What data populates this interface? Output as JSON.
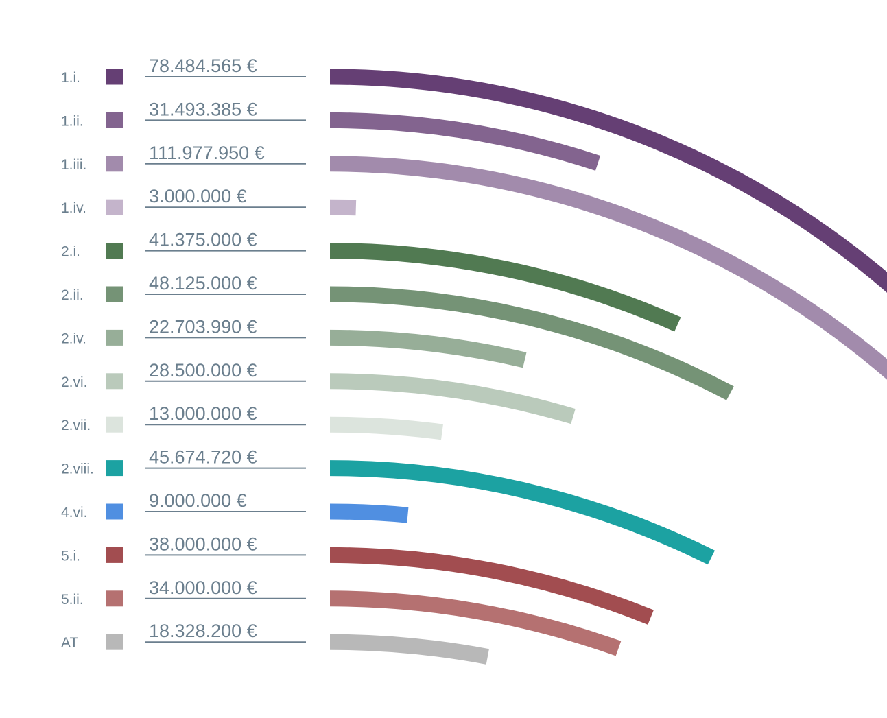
{
  "chart_data": {
    "type": "bar",
    "title": "",
    "xlabel": "",
    "ylabel": "",
    "grid": false,
    "legend": "left",
    "unit": "€",
    "categories": [
      "1.i.",
      "1.ii.",
      "1.iii.",
      "1.iv.",
      "2.i.",
      "2.ii.",
      "2.iv.",
      "2.vi.",
      "2.vii.",
      "2.viii.",
      "4.vi.",
      "5.i.",
      "5.ii.",
      "AT"
    ],
    "values": [
      78484565,
      31493385,
      111977950,
      3000000,
      41375000,
      48125000,
      22703990,
      28500000,
      13000000,
      45674720,
      9000000,
      38000000,
      34000000,
      18328200
    ],
    "value_labels": [
      "78.484.565 €",
      "31.493.385 €",
      "111.977.950 €",
      "3.000.000 €",
      "41.375.000 €",
      "48.125.000 €",
      "22.703.990 €",
      "28.500.000 €",
      "13.000.000 €",
      "45.674.720 €",
      "9.000.000 €",
      "38.000.000 €",
      "34.000.000 €",
      "18.328.200 €"
    ],
    "colors": [
      "#653f74",
      "#83648f",
      "#a28bac",
      "#c4b4cb",
      "#517a52",
      "#759376",
      "#97ae98",
      "#bacabb",
      "#dce4dd",
      "#1ca2a2",
      "#508fe1",
      "#a24d50",
      "#b57171",
      "#b8b8b8"
    ]
  }
}
